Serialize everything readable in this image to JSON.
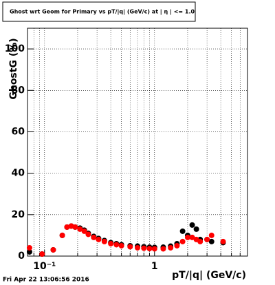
{
  "chart_data": {
    "type": "scatter",
    "title": "Ghost wrt Geom for Primary vs pT/|q| (GeV/c) at | η | <= 1.0",
    "x_label": "pT/|q| (GeV/c)",
    "y_label": "GhostG (%)",
    "footer": "Fri Apr 22 13:06:56 2016",
    "x_scale": "log",
    "grid": true,
    "x": [
      0.073,
      0.095,
      0.12,
      0.145,
      0.16,
      0.175,
      0.19,
      0.21,
      0.23,
      0.25,
      0.28,
      0.31,
      0.35,
      0.4,
      0.45,
      0.5,
      0.6,
      0.7,
      0.8,
      0.9,
      1.0,
      1.2,
      1.4,
      1.6,
      1.8,
      2.0,
      2.2,
      2.4,
      2.6,
      3.0,
      3.3,
      4.2
    ],
    "series": [
      {
        "name": "black",
        "color": "#000000",
        "values": [
          2,
          1,
          3,
          10,
          14,
          14.5,
          14,
          13.5,
          12.5,
          11,
          9.5,
          8.5,
          7.5,
          6.5,
          6,
          5.5,
          5,
          4.8,
          4.5,
          4.3,
          4.2,
          4.3,
          4.8,
          6,
          12,
          10,
          15,
          13,
          8,
          8,
          7,
          6.5
        ]
      },
      {
        "name": "red",
        "color": "#ff0000",
        "values": [
          4,
          1,
          3,
          10,
          14,
          14.5,
          14,
          13,
          12,
          10.5,
          9,
          8,
          7,
          6,
          5.5,
          5,
          4.5,
          4,
          3.8,
          3.6,
          3.5,
          3.5,
          4,
          5,
          7,
          9,
          9,
          8,
          7,
          8,
          10,
          7
        ]
      }
    ],
    "xlim": [
      0.07,
      7
    ],
    "xticks": [
      {
        "value": 0.1,
        "label": "10⁻¹"
      },
      1
    ],
    "xminorticks": [
      0.08,
      0.09,
      0.2,
      0.3,
      0.4,
      0.5,
      0.6,
      0.7,
      0.8,
      0.9,
      2,
      3,
      4,
      5,
      6,
      7
    ],
    "ylim": [
      0,
      110
    ],
    "yticks": [
      0,
      20,
      40,
      60,
      80,
      100
    ]
  }
}
